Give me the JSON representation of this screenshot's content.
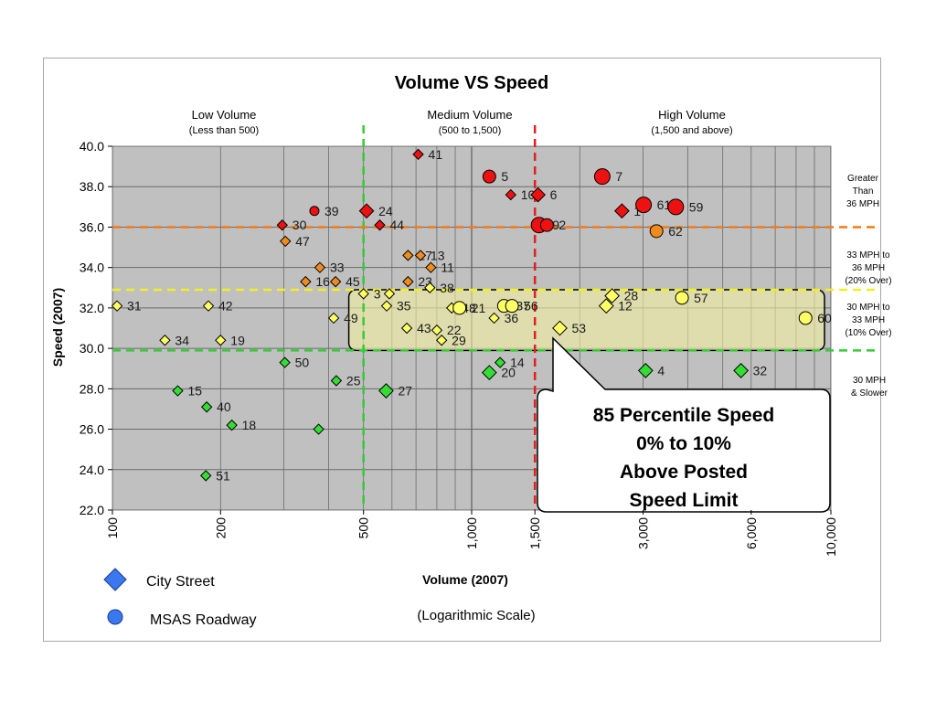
{
  "chart_data": {
    "type": "scatter",
    "title": "Volume VS Speed",
    "xlabel": "Volume (2007)",
    "xlabel_note": "(Logarithmic Scale)",
    "ylabel": "Speed (2007)",
    "xscale": "log",
    "xlim": [
      100,
      10000
    ],
    "ylim": [
      22,
      40
    ],
    "grid": true,
    "xticks": [
      100,
      200,
      500,
      1000,
      1500,
      3000,
      6000,
      10000
    ],
    "xtick_labels": [
      "100",
      "200",
      "500",
      "1,000",
      "1,500",
      "3,000",
      "6,000",
      "10,000"
    ],
    "yticks": [
      22,
      24,
      26,
      28,
      30,
      32,
      34,
      36,
      38,
      40
    ],
    "ytick_labels": [
      "22.0",
      "24.0",
      "26.0",
      "28.0",
      "30.0",
      "32.0",
      "34.0",
      "36.0",
      "38.0",
      "40.0"
    ],
    "volume_bands": [
      {
        "label": "Low Volume",
        "sub": "(Less than 500)"
      },
      {
        "label": "Medium Volume",
        "sub": "(500 to 1,500)"
      },
      {
        "label": "High Volume",
        "sub": "(1,500 and above)"
      }
    ],
    "thresholds": [
      {
        "axis": "x",
        "value": 500,
        "color": "#33cc33"
      },
      {
        "axis": "x",
        "value": 1500,
        "color": "#e02020"
      },
      {
        "axis": "y",
        "value": 36,
        "color": "#f07a1a"
      },
      {
        "axis": "y",
        "value": 32.9,
        "color": "#f0f020"
      },
      {
        "axis": "y",
        "value": 29.9,
        "color": "#33cc33"
      }
    ],
    "speed_bands": [
      {
        "lines": [
          "Greater",
          "Than",
          "36 MPH"
        ]
      },
      {
        "lines": [
          "33 MPH to",
          "36 MPH",
          "(20% Over)"
        ]
      },
      {
        "lines": [
          "30 MPH to",
          "33 MPH",
          "(10% Over)"
        ]
      },
      {
        "lines": [
          "30 MPH",
          "& Slower"
        ]
      }
    ],
    "callout": {
      "lines": [
        "85 Percentile Speed",
        "0% to 10%",
        "Above Posted",
        "Speed Limit"
      ]
    },
    "legend": [
      {
        "label": "City Street",
        "shape": "diamond"
      },
      {
        "label": "MSAS Roadway",
        "shape": "circle"
      }
    ],
    "colors": {
      "red": "#ee1111",
      "orange": "#f08c1e",
      "yellow": "#ffff66",
      "green": "#33dd33",
      "legend_blue": "#3a78f0",
      "plot_bg": "#c0c0c0",
      "highlight": "#f4f0a0"
    },
    "points": [
      {
        "id": "31",
        "x": 103,
        "y": 32.1,
        "shape": "diamond",
        "color": "yellow",
        "size": "s"
      },
      {
        "id": "34",
        "x": 140,
        "y": 30.4,
        "shape": "diamond",
        "color": "yellow",
        "size": "s"
      },
      {
        "id": "15",
        "x": 152,
        "y": 27.9,
        "shape": "diamond",
        "color": "green",
        "size": "s"
      },
      {
        "id": "42",
        "x": 185,
        "y": 32.1,
        "shape": "diamond",
        "color": "yellow",
        "size": "s"
      },
      {
        "id": "40",
        "x": 183,
        "y": 27.1,
        "shape": "diamond",
        "color": "green",
        "size": "s"
      },
      {
        "id": "51",
        "x": 182,
        "y": 23.7,
        "shape": "diamond",
        "color": "green",
        "size": "s"
      },
      {
        "id": "19",
        "x": 200,
        "y": 30.4,
        "shape": "diamond",
        "color": "yellow",
        "size": "s"
      },
      {
        "id": "18",
        "x": 215,
        "y": 26.2,
        "shape": "diamond",
        "color": "green",
        "size": "s"
      },
      {
        "id": "30",
        "x": 297,
        "y": 36.1,
        "shape": "diamond",
        "color": "red",
        "size": "s"
      },
      {
        "id": "47",
        "x": 303,
        "y": 35.3,
        "shape": "diamond",
        "color": "orange",
        "size": "s"
      },
      {
        "id": "50",
        "x": 302,
        "y": 29.3,
        "shape": "diamond",
        "color": "green",
        "size": "s"
      },
      {
        "id": "39",
        "x": 365,
        "y": 36.8,
        "shape": "circle",
        "color": "red",
        "size": "s"
      },
      {
        "id": "16",
        "x": 345,
        "y": 33.3,
        "shape": "diamond",
        "color": "orange",
        "size": "s"
      },
      {
        "id": "",
        "x": 375,
        "y": 26.0,
        "shape": "diamond",
        "color": "green",
        "size": "s"
      },
      {
        "id": "33",
        "x": 378,
        "y": 34.0,
        "shape": "diamond",
        "color": "orange",
        "size": "s"
      },
      {
        "id": "45",
        "x": 418,
        "y": 33.3,
        "shape": "diamond",
        "color": "orange",
        "size": "s"
      },
      {
        "id": "49",
        "x": 413,
        "y": 31.5,
        "shape": "diamond",
        "color": "yellow",
        "size": "s"
      },
      {
        "id": "25",
        "x": 420,
        "y": 28.4,
        "shape": "diamond",
        "color": "green",
        "size": "s"
      },
      {
        "id": "24",
        "x": 510,
        "y": 36.8,
        "shape": "diamond",
        "color": "red",
        "size": "m"
      },
      {
        "id": "44",
        "x": 555,
        "y": 36.1,
        "shape": "diamond",
        "color": "red",
        "size": "s"
      },
      {
        "id": "3",
        "x": 500,
        "y": 32.7,
        "shape": "diamond",
        "color": "yellow",
        "size": "s"
      },
      {
        "id": "",
        "x": 590,
        "y": 32.7,
        "shape": "diamond",
        "color": "yellow",
        "size": "s"
      },
      {
        "id": "35",
        "x": 580,
        "y": 32.1,
        "shape": "diamond",
        "color": "yellow",
        "size": "s"
      },
      {
        "id": "27",
        "x": 578,
        "y": 27.9,
        "shape": "diamond",
        "color": "green",
        "size": "m"
      },
      {
        "id": "41",
        "x": 710,
        "y": 39.6,
        "shape": "diamond",
        "color": "red",
        "size": "s"
      },
      {
        "id": "17",
        "x": 665,
        "y": 34.6,
        "shape": "diamond",
        "color": "orange",
        "size": "s"
      },
      {
        "id": "13",
        "x": 720,
        "y": 34.6,
        "shape": "diamond",
        "color": "orange",
        "size": "s"
      },
      {
        "id": "23",
        "x": 665,
        "y": 33.3,
        "shape": "diamond",
        "color": "orange",
        "size": "s"
      },
      {
        "id": "43",
        "x": 660,
        "y": 31.0,
        "shape": "diamond",
        "color": "yellow",
        "size": "s"
      },
      {
        "id": "11",
        "x": 770,
        "y": 34.0,
        "shape": "diamond",
        "color": "orange",
        "size": "s"
      },
      {
        "id": "38",
        "x": 765,
        "y": 33.0,
        "shape": "diamond",
        "color": "yellow",
        "size": "s"
      },
      {
        "id": "22",
        "x": 800,
        "y": 30.9,
        "shape": "diamond",
        "color": "yellow",
        "size": "s"
      },
      {
        "id": "48",
        "x": 880,
        "y": 32.0,
        "shape": "diamond",
        "color": "yellow",
        "size": "s"
      },
      {
        "id": "29",
        "x": 825,
        "y": 30.4,
        "shape": "diamond",
        "color": "yellow",
        "size": "s"
      },
      {
        "id": "21",
        "x": 925,
        "y": 32.0,
        "shape": "circle",
        "color": "yellow",
        "size": "m"
      },
      {
        "id": "36",
        "x": 1155,
        "y": 31.5,
        "shape": "diamond",
        "color": "yellow",
        "size": "s"
      },
      {
        "id": "37",
        "x": 1230,
        "y": 32.1,
        "shape": "circle",
        "color": "yellow",
        "size": "m"
      },
      {
        "id": "56",
        "x": 1295,
        "y": 32.1,
        "shape": "circle",
        "color": "yellow",
        "size": "m"
      },
      {
        "id": "20",
        "x": 1120,
        "y": 28.8,
        "shape": "diamond",
        "color": "green",
        "size": "m"
      },
      {
        "id": "14",
        "x": 1200,
        "y": 29.3,
        "shape": "diamond",
        "color": "green",
        "size": "s"
      },
      {
        "id": "5",
        "x": 1120,
        "y": 38.5,
        "shape": "circle",
        "color": "red",
        "size": "m"
      },
      {
        "id": "10",
        "x": 1285,
        "y": 37.6,
        "shape": "diamond",
        "color": "red",
        "size": "s"
      },
      {
        "id": "6",
        "x": 1530,
        "y": 37.6,
        "shape": "diamond",
        "color": "red",
        "size": "m"
      },
      {
        "id": "9",
        "x": 1540,
        "y": 36.1,
        "shape": "circle",
        "color": "red",
        "size": "l"
      },
      {
        "id": "2",
        "x": 1620,
        "y": 36.1,
        "shape": "circle",
        "color": "red",
        "size": "m"
      },
      {
        "id": "53",
        "x": 1760,
        "y": 31.0,
        "shape": "diamond",
        "color": "yellow",
        "size": "m"
      },
      {
        "id": "7",
        "x": 2310,
        "y": 38.5,
        "shape": "circle",
        "color": "red",
        "size": "l"
      },
      {
        "id": "1",
        "x": 2620,
        "y": 36.8,
        "shape": "diamond",
        "color": "red",
        "size": "m"
      },
      {
        "id": "61",
        "x": 3010,
        "y": 37.1,
        "shape": "circle",
        "color": "red",
        "size": "l"
      },
      {
        "id": "59",
        "x": 3700,
        "y": 37.0,
        "shape": "circle",
        "color": "red",
        "size": "l"
      },
      {
        "id": "62",
        "x": 3270,
        "y": 35.8,
        "shape": "circle",
        "color": "orange",
        "size": "m"
      },
      {
        "id": "28",
        "x": 2460,
        "y": 32.6,
        "shape": "diamond",
        "color": "yellow",
        "size": "m"
      },
      {
        "id": "12",
        "x": 2370,
        "y": 32.1,
        "shape": "diamond",
        "color": "yellow",
        "size": "m"
      },
      {
        "id": "57",
        "x": 3850,
        "y": 32.5,
        "shape": "circle",
        "color": "yellow",
        "size": "m"
      },
      {
        "id": "4",
        "x": 3050,
        "y": 28.9,
        "shape": "diamond",
        "color": "green",
        "size": "m"
      },
      {
        "id": "32",
        "x": 5620,
        "y": 28.9,
        "shape": "diamond",
        "color": "green",
        "size": "m"
      },
      {
        "id": "60",
        "x": 8500,
        "y": 31.5,
        "shape": "circle",
        "color": "yellow",
        "size": "m"
      }
    ]
  }
}
